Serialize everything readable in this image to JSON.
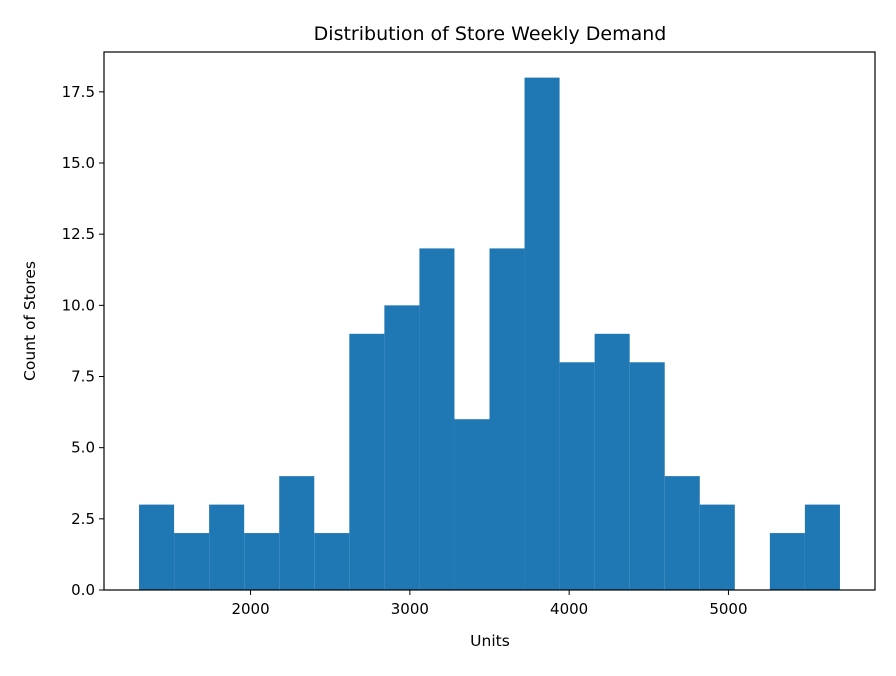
{
  "chart_data": {
    "type": "bar",
    "subtype": "histogram",
    "title": "Distribution of Store Weekly Demand",
    "xlabel": "Units",
    "ylabel": "Count of Stores",
    "bar_color": "#1f77b4",
    "grid": false,
    "legend": "none",
    "xlim": [
      1080,
      5920
    ],
    "ylim": [
      0,
      18.9
    ],
    "x_ticks": [
      2000,
      3000,
      4000,
      5000
    ],
    "x_tick_labels": [
      "2000",
      "3000",
      "4000",
      "5000"
    ],
    "y_ticks": [
      0,
      2.5,
      5,
      7.5,
      10,
      12.5,
      15,
      17.5
    ],
    "y_tick_labels": [
      "0.0",
      "2.5",
      "5.0",
      "7.5",
      "10.0",
      "12.5",
      "15.0",
      "17.5"
    ],
    "bins": [
      {
        "x0": 1300,
        "x1": 1520,
        "count": 3
      },
      {
        "x0": 1520,
        "x1": 1740,
        "count": 2
      },
      {
        "x0": 1740,
        "x1": 1960,
        "count": 3
      },
      {
        "x0": 1960,
        "x1": 2180,
        "count": 2
      },
      {
        "x0": 2180,
        "x1": 2400,
        "count": 4
      },
      {
        "x0": 2400,
        "x1": 2620,
        "count": 2
      },
      {
        "x0": 2620,
        "x1": 2840,
        "count": 9
      },
      {
        "x0": 2840,
        "x1": 3060,
        "count": 10
      },
      {
        "x0": 3060,
        "x1": 3280,
        "count": 12
      },
      {
        "x0": 3280,
        "x1": 3500,
        "count": 6
      },
      {
        "x0": 3500,
        "x1": 3720,
        "count": 12
      },
      {
        "x0": 3720,
        "x1": 3940,
        "count": 18
      },
      {
        "x0": 3940,
        "x1": 4160,
        "count": 8
      },
      {
        "x0": 4160,
        "x1": 4380,
        "count": 9
      },
      {
        "x0": 4380,
        "x1": 4600,
        "count": 8
      },
      {
        "x0": 4600,
        "x1": 4820,
        "count": 4
      },
      {
        "x0": 4820,
        "x1": 5040,
        "count": 3
      },
      {
        "x0": 5040,
        "x1": 5260,
        "count": 0
      },
      {
        "x0": 5260,
        "x1": 5480,
        "count": 2
      },
      {
        "x0": 5480,
        "x1": 5700,
        "count": 3
      }
    ]
  }
}
